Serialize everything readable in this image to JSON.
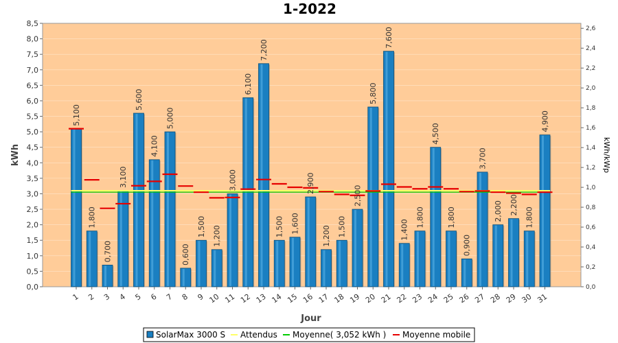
{
  "chart_data": {
    "type": "bar",
    "title": "1-2022",
    "xlabel": "Jour",
    "ylabel": "kWh",
    "y2label": "kWh/kWp",
    "ylim": [
      0,
      8.5
    ],
    "y2lim": [
      0,
      2.65
    ],
    "y_ticks": [
      "0,0",
      "0,5",
      "1,0",
      "1,5",
      "2,0",
      "2,5",
      "3,0",
      "3,5",
      "4,0",
      "4,5",
      "5,0",
      "5,5",
      "6,0",
      "6,5",
      "7,0",
      "7,5",
      "8,0",
      "8,5"
    ],
    "y2_ticks": [
      "0,0",
      "0,2",
      "0,4",
      "0,6",
      "0,8",
      "1,0",
      "1,2",
      "1,4",
      "1,6",
      "1,8",
      "2,0",
      "2,2",
      "2,4",
      "2,6"
    ],
    "categories": [
      "1",
      "2",
      "3",
      "4",
      "5",
      "6",
      "7",
      "8",
      "9",
      "10",
      "11",
      "12",
      "13",
      "14",
      "15",
      "16",
      "17",
      "18",
      "19",
      "20",
      "21",
      "22",
      "23",
      "24",
      "25",
      "26",
      "27",
      "28",
      "29",
      "30",
      "31"
    ],
    "series": [
      {
        "name": "SolarMax 3000 S",
        "values": [
          5.1,
          1.8,
          0.7,
          3.1,
          5.6,
          4.1,
          5.0,
          0.6,
          1.5,
          1.2,
          3.0,
          6.1,
          7.2,
          1.5,
          1.6,
          2.9,
          1.2,
          1.5,
          2.5,
          5.8,
          7.6,
          1.4,
          1.8,
          4.5,
          1.8,
          0.9,
          3.7,
          2.0,
          2.2,
          1.8,
          4.9
        ],
        "labels": [
          "5,100",
          "1,800",
          "0,700",
          "3,100",
          "5,600",
          "4,100",
          "5,000",
          "0,600",
          "1,500",
          "1,200",
          "3,000",
          "6,100",
          "7,200",
          "1,500",
          "1,600",
          "2,900",
          "1,200",
          "1,500",
          "2,500",
          "5,800",
          "7,600",
          "1,400",
          "1,800",
          "4,500",
          "1,800",
          "0,900",
          "3,700",
          "2,000",
          "2,200",
          "1,800",
          "4,900"
        ],
        "color": "#1a7fc1"
      },
      {
        "name": "Attendus",
        "values": [
          3.1,
          3.1,
          3.1,
          3.1,
          3.1,
          3.1,
          3.1,
          3.1,
          3.1,
          3.1,
          3.1,
          3.1,
          3.1,
          3.1,
          3.1,
          3.1,
          3.1,
          3.1,
          3.1,
          3.1,
          3.1,
          3.1,
          3.1,
          3.1,
          3.1,
          3.1,
          3.1,
          3.1,
          3.1,
          3.1,
          3.1
        ],
        "color": "#ffff66"
      },
      {
        "name": "Moyenne( 3,052 kWh )",
        "value": 3.052,
        "color": "#00cc00"
      },
      {
        "name": "Moyenne mobile",
        "values": [
          5.1,
          3.45,
          2.53,
          2.68,
          3.26,
          3.4,
          3.63,
          3.25,
          3.05,
          2.87,
          2.88,
          3.15,
          3.46,
          3.32,
          3.21,
          3.19,
          3.07,
          2.98,
          2.95,
          3.09,
          3.31,
          3.22,
          3.16,
          3.22,
          3.16,
          3.07,
          3.09,
          3.05,
          3.02,
          2.98,
          3.05
        ],
        "color": "#e60000"
      }
    ],
    "legend_position": "bottom",
    "plot_background": "#ffcc99",
    "grid": true
  }
}
